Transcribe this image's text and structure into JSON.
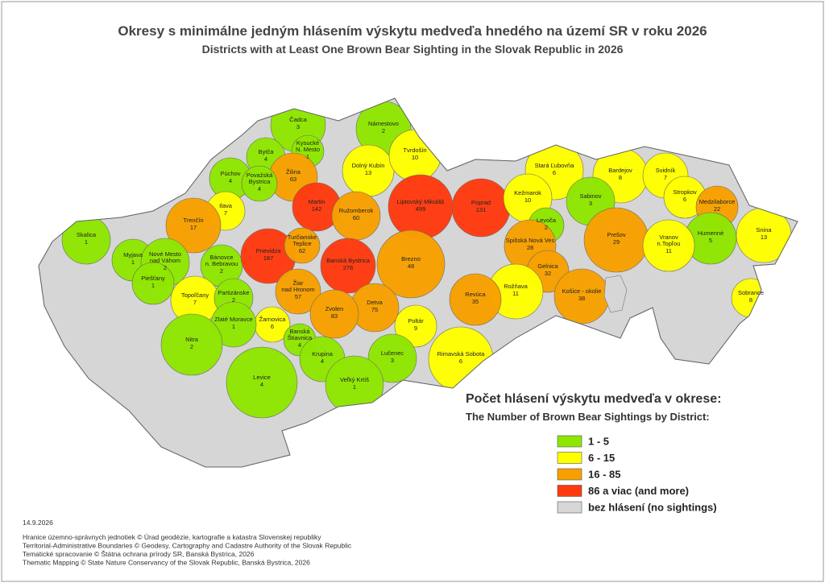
{
  "title": {
    "sk": "Okresy s minimálne jedným hlásením výskytu medveďa hnedého na území SR v roku 2026",
    "en": "Districts with at Least One Brown Bear Sighting in the Slovak Republic in 2026"
  },
  "map": {
    "districts": [
      {
        "name": [
          "Čadca"
        ],
        "count": 3
      },
      {
        "name": [
          "Námestovo"
        ],
        "count": 2
      },
      {
        "name": [
          "Kysucké",
          "N. Mesto"
        ],
        "count": 1
      },
      {
        "name": [
          "Bytča"
        ],
        "count": 4
      },
      {
        "name": [
          "Žilina"
        ],
        "count": 63
      },
      {
        "name": [
          "Dolný Kubín"
        ],
        "count": 13
      },
      {
        "name": [
          "Tvrdošín"
        ],
        "count": 10
      },
      {
        "name": [
          "Púchov"
        ],
        "count": 4
      },
      {
        "name": [
          "Považská",
          "Bystrica"
        ],
        "count": 4
      },
      {
        "name": [
          "Ilava"
        ],
        "count": 7
      },
      {
        "name": [
          "Martin"
        ],
        "count": 142
      },
      {
        "name": [
          "Ružomberok"
        ],
        "count": 60
      },
      {
        "name": [
          "Liptovský Mikuláš"
        ],
        "count": 499
      },
      {
        "name": [
          "Poprad"
        ],
        "count": 131
      },
      {
        "name": [
          "Stará Ľubovňa"
        ],
        "count": 6
      },
      {
        "name": [
          "Bardejov"
        ],
        "count": 8
      },
      {
        "name": [
          "Svidník"
        ],
        "count": 7
      },
      {
        "name": [
          "Stropkov"
        ],
        "count": 6
      },
      {
        "name": [
          "Medzilaborce"
        ],
        "count": 22
      },
      {
        "name": [
          "Kežmarok"
        ],
        "count": 10
      },
      {
        "name": [
          "Sabinov"
        ],
        "count": 3
      },
      {
        "name": [
          "Levoča"
        ],
        "count": 2
      },
      {
        "name": [
          "Trenčín"
        ],
        "count": 17
      },
      {
        "name": [
          "Skalica"
        ],
        "count": 1
      },
      {
        "name": [
          "Myjava"
        ],
        "count": 1
      },
      {
        "name": [
          "Nové Mesto",
          "nad Váhom"
        ],
        "count": 2
      },
      {
        "name": [
          "Bánovce",
          "n. Bebravou"
        ],
        "count": 2
      },
      {
        "name": [
          "Prievidza"
        ],
        "count": 187
      },
      {
        "name": [
          "Turčianske",
          "Teplice"
        ],
        "count": 62
      },
      {
        "name": [
          "Banská Bystrica"
        ],
        "count": 276
      },
      {
        "name": [
          "Brezno"
        ],
        "count": 48
      },
      {
        "name": [
          "Spišská Nová Ves"
        ],
        "count": 28
      },
      {
        "name": [
          "Prešov"
        ],
        "count": 29
      },
      {
        "name": [
          "Humenné"
        ],
        "count": 5
      },
      {
        "name": [
          "Snina"
        ],
        "count": 13
      },
      {
        "name": [
          "Vranov",
          "n.Topľou"
        ],
        "count": 11
      },
      {
        "name": [
          "Gelnica"
        ],
        "count": 32
      },
      {
        "name": [
          "Košice - okolie"
        ],
        "count": 38
      },
      {
        "name": [
          "Rožňava"
        ],
        "count": 11
      },
      {
        "name": [
          "Revúca"
        ],
        "count": 35
      },
      {
        "name": [
          "Piešťany"
        ],
        "count": 1
      },
      {
        "name": [
          "Topoľčany"
        ],
        "count": 7
      },
      {
        "name": [
          "Partizánske"
        ],
        "count": 2
      },
      {
        "name": [
          "Žiar",
          "nad Hronom"
        ],
        "count": 57
      },
      {
        "name": [
          "Detva"
        ],
        "count": 75
      },
      {
        "name": [
          "Zvolen"
        ],
        "count": 83
      },
      {
        "name": [
          "Žarnovica"
        ],
        "count": 6
      },
      {
        "name": [
          "Zlaté Moravce"
        ],
        "count": 1
      },
      {
        "name": [
          "Banská",
          "Štiavnica"
        ],
        "count": 4
      },
      {
        "name": [
          "Poltár"
        ],
        "count": 9
      },
      {
        "name": [
          "Nitra"
        ],
        "count": 2
      },
      {
        "name": [
          "Krupina"
        ],
        "count": 4
      },
      {
        "name": [
          "Lučenec"
        ],
        "count": 3
      },
      {
        "name": [
          "Rimavská Sobota"
        ],
        "count": 6
      },
      {
        "name": [
          "Levice"
        ],
        "count": 4
      },
      {
        "name": [
          "Veľký Krtíš"
        ],
        "count": 1
      },
      {
        "name": [
          "Sobrance"
        ],
        "count": 8
      }
    ]
  },
  "legend": {
    "title_sk": "Počet hlásení výskytu medveďa v okrese:",
    "title_en": "The Number of Brown Bear Sightings by District:",
    "items": [
      {
        "label": "1 - 5",
        "color": "#8ee600",
        "min": 1,
        "max": 5
      },
      {
        "label": "6 - 15",
        "color": "#ffff00",
        "min": 6,
        "max": 15
      },
      {
        "label": "16 - 85",
        "color": "#f7a000",
        "min": 16,
        "max": 85
      },
      {
        "label": "86 a viac (and more)",
        "color": "#ff3a10",
        "min": 86
      },
      {
        "label": "bez hlásení (no sightings)",
        "color": "#d6d6d6"
      }
    ]
  },
  "date": "14.9.2026",
  "credits": [
    "Hranice územno-správnych jednotiek © Úrad geodézie, kartografie a katastra Slovenskej republiky",
    "Territorial-Administrative Boundaries © Geodesy, Cartography and Cadastre Authority of the Slovak Republic",
    "Tematické spracovanie © Štátna ochrana prírody SR, Banská Bystrica, 2026",
    "Thematic Mapping © State Nature Conservancy of the Slovak Republic, Banská Bystrica, 2026"
  ]
}
